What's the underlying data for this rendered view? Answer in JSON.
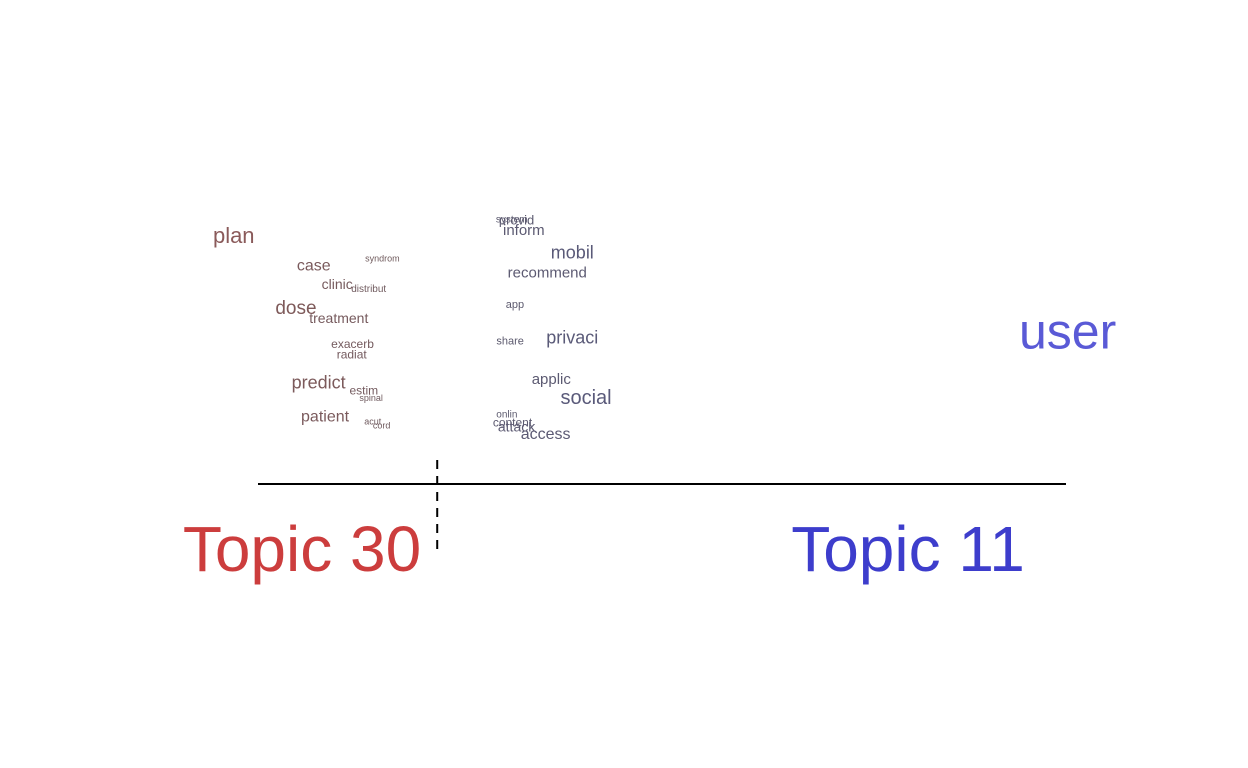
{
  "chart_data": {
    "type": "scatter",
    "description_kind": "topic contrast word plot",
    "topics": [
      {
        "label": "Topic 30",
        "color": "#cc3d3d"
      },
      {
        "label": "Topic 11",
        "color": "#3d3dcc"
      }
    ],
    "xlim": [
      0,
      1
    ],
    "divider_x": 0.2218,
    "words": [
      {
        "term": "plan",
        "x": -0.03,
        "y": 0.806,
        "size": 22,
        "color": "#8a5a5a"
      },
      {
        "term": "case",
        "x": 0.069,
        "y": 0.693,
        "size": 16,
        "color": "#7a5a5c"
      },
      {
        "term": "syndrom",
        "x": 0.154,
        "y": 0.718,
        "size": 9,
        "color": "#6f5a5c"
      },
      {
        "term": "clinic",
        "x": 0.098,
        "y": 0.621,
        "size": 14,
        "color": "#765a5d"
      },
      {
        "term": "distribut",
        "x": 0.137,
        "y": 0.605,
        "size": 10,
        "color": "#705a5e"
      },
      {
        "term": "dose",
        "x": 0.047,
        "y": 0.532,
        "size": 19,
        "color": "#7e5a5a"
      },
      {
        "term": "treatment",
        "x": 0.1,
        "y": 0.492,
        "size": 14,
        "color": "#765a5d"
      },
      {
        "term": "exacerb",
        "x": 0.117,
        "y": 0.395,
        "size": 12,
        "color": "#745a5e"
      },
      {
        "term": "radiat",
        "x": 0.116,
        "y": 0.355,
        "size": 12,
        "color": "#745a5e"
      },
      {
        "term": "predict",
        "x": 0.075,
        "y": 0.25,
        "size": 18,
        "color": "#7c5a5b"
      },
      {
        "term": "estim",
        "x": 0.131,
        "y": 0.218,
        "size": 12,
        "color": "#735a5e"
      },
      {
        "term": "spinal",
        "x": 0.14,
        "y": 0.19,
        "size": 9,
        "color": "#6f5a5e"
      },
      {
        "term": "patient",
        "x": 0.083,
        "y": 0.121,
        "size": 16,
        "color": "#7a5a5c"
      },
      {
        "term": "acut",
        "x": 0.142,
        "y": 0.101,
        "size": 9,
        "color": "#6f5a5e"
      },
      {
        "term": "cord",
        "x": 0.153,
        "y": 0.085,
        "size": 9,
        "color": "#6f5a5e"
      },
      {
        "term": "system",
        "x": 0.314,
        "y": 0.867,
        "size": 10,
        "color": "#5c5a6f"
      },
      {
        "term": "provid",
        "x": 0.32,
        "y": 0.863,
        "size": 13,
        "color": "#5c5a70"
      },
      {
        "term": "inform",
        "x": 0.329,
        "y": 0.827,
        "size": 15,
        "color": "#5c5a72"
      },
      {
        "term": "mobil",
        "x": 0.389,
        "y": 0.742,
        "size": 18,
        "color": "#5a5a78"
      },
      {
        "term": "recommend",
        "x": 0.358,
        "y": 0.665,
        "size": 15,
        "color": "#5c5a72"
      },
      {
        "term": "app",
        "x": 0.318,
        "y": 0.544,
        "size": 11,
        "color": "#5c5a6e"
      },
      {
        "term": "share",
        "x": 0.312,
        "y": 0.407,
        "size": 11,
        "color": "#5c5a6e"
      },
      {
        "term": "privaci",
        "x": 0.389,
        "y": 0.419,
        "size": 18,
        "color": "#5a5a78"
      },
      {
        "term": "applic",
        "x": 0.363,
        "y": 0.262,
        "size": 15,
        "color": "#5c5a72"
      },
      {
        "term": "social",
        "x": 0.406,
        "y": 0.194,
        "size": 20,
        "color": "#5a5a7a"
      },
      {
        "term": "onlin",
        "x": 0.308,
        "y": 0.129,
        "size": 10,
        "color": "#5c5a6e"
      },
      {
        "term": "content",
        "x": 0.315,
        "y": 0.097,
        "size": 12,
        "color": "#5c5a70"
      },
      {
        "term": "attack",
        "x": 0.32,
        "y": 0.081,
        "size": 14,
        "color": "#5c5a72"
      },
      {
        "term": "access",
        "x": 0.356,
        "y": 0.056,
        "size": 16,
        "color": "#5c5a74"
      },
      {
        "term": "user",
        "x": 1.002,
        "y": 0.443,
        "size": 50,
        "color": "#5a5ad6"
      }
    ]
  }
}
